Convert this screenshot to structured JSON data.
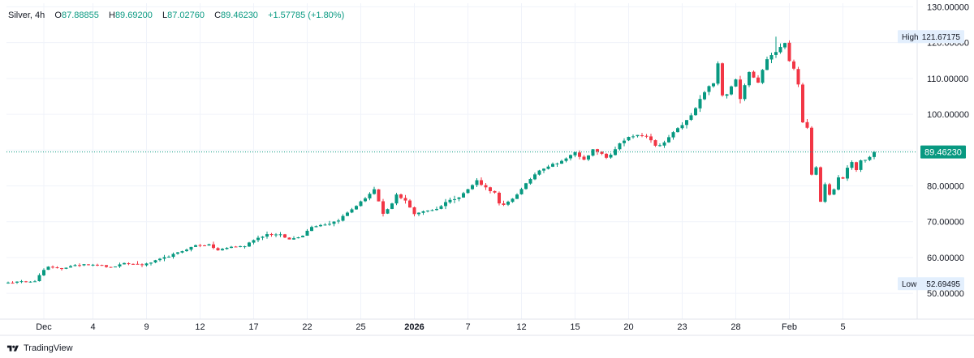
{
  "legend": {
    "symbol": "Silver",
    "interval": "4h",
    "open_label": "O",
    "open": "87.88855",
    "high_label": "H",
    "high": "89.69200",
    "low_label": "L",
    "low": "87.02760",
    "close_label": "C",
    "close": "89.46230",
    "change": "+1.57785 (+1.80%)"
  },
  "branding": {
    "name": "TradingView",
    "logo_icon": "tradingview-logo-icon"
  },
  "colors": {
    "up": "#089981",
    "down": "#f23645",
    "grid": "#f0f3fa",
    "text": "#131722",
    "axis_text": "#131722",
    "price_line": "#089981",
    "label_bg": "#e3effd"
  },
  "chart_data": {
    "type": "candlestick",
    "title": "",
    "xlabel": "",
    "ylabel": "",
    "ylim": [
      42.8,
      131
    ],
    "y_axis_position": "right",
    "y_ticks": [
      50,
      60,
      70,
      80,
      90,
      100,
      110,
      120,
      130
    ],
    "y_tick_labels": [
      "50.00000",
      "60.00000",
      "70.00000",
      "80.00000",
      "",
      "100.00000",
      "110.00000",
      "120.00000",
      "130.00000"
    ],
    "x_tick_labels": [
      {
        "label": "Dec",
        "bar": 8,
        "bold": false
      },
      {
        "label": "4",
        "bar": 19,
        "bold": false
      },
      {
        "label": "9",
        "bar": 31,
        "bold": false
      },
      {
        "label": "12",
        "bar": 43,
        "bold": false
      },
      {
        "label": "17",
        "bar": 55,
        "bold": false
      },
      {
        "label": "22",
        "bar": 67,
        "bold": false
      },
      {
        "label": "25",
        "bar": 79,
        "bold": false
      },
      {
        "label": "2026",
        "bar": 91,
        "bold": true
      },
      {
        "label": "7",
        "bar": 103,
        "bold": false
      },
      {
        "label": "12",
        "bar": 115,
        "bold": false
      },
      {
        "label": "15",
        "bar": 127,
        "bold": false
      },
      {
        "label": "20",
        "bar": 139,
        "bold": false
      },
      {
        "label": "23",
        "bar": 151,
        "bold": false
      },
      {
        "label": "28",
        "bar": 163,
        "bold": false
      },
      {
        "label": "Feb",
        "bar": 175,
        "bold": false
      },
      {
        "label": "5",
        "bar": 187,
        "bold": false
      }
    ],
    "grid": true,
    "legend": "top-left",
    "markers": {
      "high": {
        "label": "High",
        "value": 121.67175,
        "value_text": "121.67175"
      },
      "low": {
        "label": "Low",
        "value": 52.69495,
        "value_text": "52.69495"
      },
      "last": {
        "value": 89.4623,
        "value_text": "89.46230"
      }
    },
    "path_points": [
      [
        0,
        53.0
      ],
      [
        6,
        53.5
      ],
      [
        8,
        56.5
      ],
      [
        9,
        57.3
      ],
      [
        12,
        57.0
      ],
      [
        17,
        58.2
      ],
      [
        20,
        58.0
      ],
      [
        23,
        57.2
      ],
      [
        26,
        58.3
      ],
      [
        30,
        58.0
      ],
      [
        31,
        58.2
      ],
      [
        34,
        59.5
      ],
      [
        38,
        61.3
      ],
      [
        42,
        63.4
      ],
      [
        45,
        63.5
      ],
      [
        47,
        62.0
      ],
      [
        50,
        63.0
      ],
      [
        53,
        63.2
      ],
      [
        55,
        65.0
      ],
      [
        58,
        66.5
      ],
      [
        61,
        66.3
      ],
      [
        63,
        65.0
      ],
      [
        66,
        66.2
      ],
      [
        68,
        68.7
      ],
      [
        72,
        69.5
      ],
      [
        74,
        70.5
      ],
      [
        77,
        73.5
      ],
      [
        79,
        75.5
      ],
      [
        82,
        79.0
      ],
      [
        84,
        72.0
      ],
      [
        86,
        75.0
      ],
      [
        87,
        77.5
      ],
      [
        89,
        76.0
      ],
      [
        91,
        72.0
      ],
      [
        93,
        73.0
      ],
      [
        96,
        73.5
      ],
      [
        98,
        75.5
      ],
      [
        101,
        77.0
      ],
      [
        103,
        79.0
      ],
      [
        105,
        81.5
      ],
      [
        107,
        79.5
      ],
      [
        109,
        78.0
      ],
      [
        110,
        75.0
      ],
      [
        111,
        74.5
      ],
      [
        113,
        76.5
      ],
      [
        115,
        79.0
      ],
      [
        117,
        82.0
      ],
      [
        119,
        84.5
      ],
      [
        121,
        85.5
      ],
      [
        123,
        86.5
      ],
      [
        125,
        87.5
      ],
      [
        127,
        89.5
      ],
      [
        128,
        88.0
      ],
      [
        129,
        87.5
      ],
      [
        131,
        90.0
      ],
      [
        132,
        89.5
      ],
      [
        134,
        88.0
      ],
      [
        135,
        88.5
      ],
      [
        137,
        92.0
      ],
      [
        139,
        93.5
      ],
      [
        141,
        94.0
      ],
      [
        143,
        93.8
      ],
      [
        144,
        92.5
      ],
      [
        145,
        91.0
      ],
      [
        147,
        92.0
      ],
      [
        149,
        95.0
      ],
      [
        151,
        97.0
      ],
      [
        153,
        99.5
      ],
      [
        155,
        104.5
      ],
      [
        157,
        108.0
      ],
      [
        158,
        108.5
      ],
      [
        159,
        114.5
      ],
      [
        160,
        105.0
      ],
      [
        161,
        105.5
      ],
      [
        163,
        110.0
      ],
      [
        164,
        104.5
      ],
      [
        166,
        112.0
      ],
      [
        168,
        109.0
      ],
      [
        170,
        115.5
      ],
      [
        172,
        117.5
      ],
      [
        173,
        118.5
      ],
      [
        174,
        120.0
      ],
      [
        175,
        115.0
      ],
      [
        176,
        113.0
      ],
      [
        177,
        108.0
      ],
      [
        178,
        97.5
      ],
      [
        179,
        96.5
      ],
      [
        180,
        83.0
      ],
      [
        181,
        85.0
      ],
      [
        182,
        75.5
      ],
      [
        183,
        80.5
      ],
      [
        184,
        77.5
      ],
      [
        185,
        79.0
      ],
      [
        186,
        82.5
      ],
      [
        187,
        82.0
      ],
      [
        188,
        85.0
      ],
      [
        189,
        86.5
      ],
      [
        190,
        84.5
      ],
      [
        191,
        87.0
      ],
      [
        192,
        87.5
      ],
      [
        193,
        87.9
      ],
      [
        194,
        89.46
      ]
    ]
  }
}
